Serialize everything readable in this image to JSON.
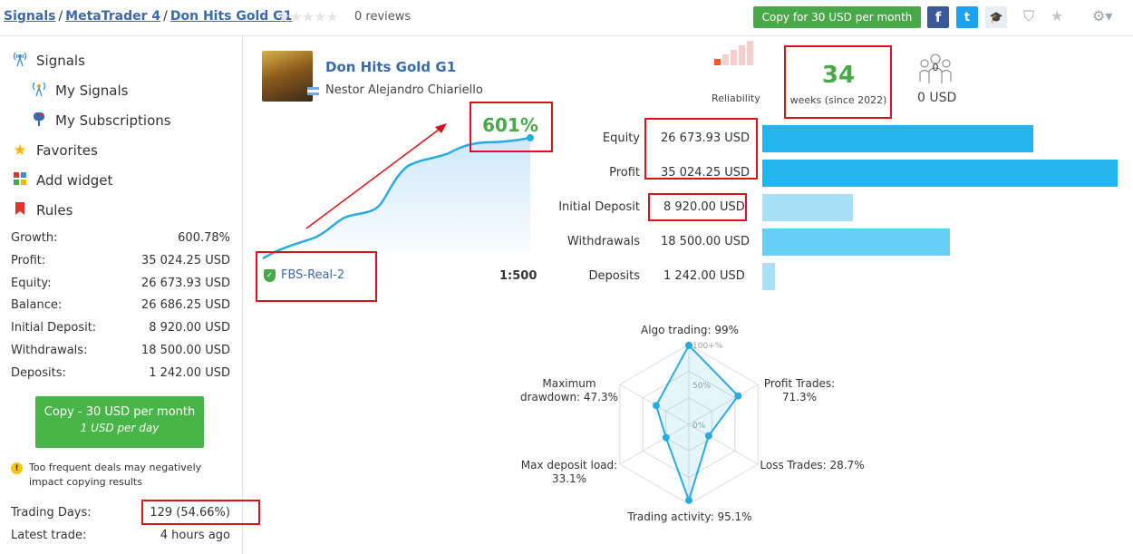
{
  "breadcrumb": {
    "item1": "Signals",
    "item2": "MetaTrader 4",
    "item3": "Don Hits Gold G1",
    "sep": "/"
  },
  "rating": {
    "stars": "★★★★★",
    "reviews": "0 reviews"
  },
  "header": {
    "copy_button": "Copy for 30 USD per month",
    "facebook": "f",
    "twitter": "t",
    "edu": "🎓",
    "shield_icon": "⛉",
    "star_icon": "★",
    "gear_icon": "⚙▾"
  },
  "sidebar": {
    "signals": "Signals",
    "my_signals": "My Signals",
    "my_subscriptions": "My Subscriptions",
    "favorites": "Favorites",
    "add_widget": "Add widget",
    "rules": "Rules"
  },
  "stats": [
    {
      "label": "Growth:",
      "value": "600.78%"
    },
    {
      "label": "Profit:",
      "value": "35 024.25 USD"
    },
    {
      "label": "Equity:",
      "value": "26 673.93 USD"
    },
    {
      "label": "Balance:",
      "value": "26 686.25 USD"
    },
    {
      "label": "Initial Deposit:",
      "value": "8 920.00 USD"
    },
    {
      "label": "Withdrawals:",
      "value": "18 500.00 USD"
    },
    {
      "label": "Deposits:",
      "value": "1 242.00 USD"
    }
  ],
  "copy_box": {
    "line1": "Copy - 30 USD per month",
    "line2": "1 USD per day"
  },
  "warning": {
    "icon": "!",
    "text": "Too frequent deals may negatively impact copying results"
  },
  "trading": [
    {
      "label": "Trading Days:",
      "value": "129 (54.66%)"
    },
    {
      "label": "Latest trade:",
      "value": "4 hours ago"
    }
  ],
  "signal": {
    "name": "Don Hits Gold G1",
    "author": "Nestor Alejandro Chiariello",
    "reliability": "Reliability",
    "weeks": "34",
    "weeks_label": "weeks (since 2022)",
    "subscribers": "0",
    "subscribers_usd": "0 USD",
    "growth": "601%",
    "broker": "FBS-Real-2",
    "broker_icon": "✓",
    "leverage": "1:500"
  },
  "financials": [
    {
      "label": "Equity",
      "value": "26 673.93 USD",
      "amount": 26673.93,
      "color": "#24b5ef"
    },
    {
      "label": "Profit",
      "value": "35 024.25 USD",
      "amount": 35024.25,
      "color": "#24b5ef"
    },
    {
      "label": "Initial Deposit",
      "value": "8 920.00 USD",
      "amount": 8920,
      "color": "#a8e0f8"
    },
    {
      "label": "Withdrawals",
      "value": "18 500.00 USD",
      "amount": 18500,
      "color": "#66cff4"
    },
    {
      "label": "Deposits",
      "value": "1 242.00 USD",
      "amount": 1242,
      "color": "#a8e0f8"
    }
  ],
  "radar": {
    "ticks": [
      "100+%",
      "50%",
      "0%"
    ],
    "axes": [
      {
        "label": "Algo trading: 99%",
        "value": 99
      },
      {
        "label": "Profit Trades: 71.3%",
        "value": 71.3
      },
      {
        "label": "Loss Trades: 28.7%",
        "value": 28.7
      },
      {
        "label": "Trading activity: 95.1%",
        "value": 95.1
      },
      {
        "label": "Max deposit load: 33.1%",
        "value": 33.1
      },
      {
        "label": "Maximum drawdown: 47.3%",
        "value": 47.3
      }
    ]
  },
  "colors": {
    "accent_green": "#47a948",
    "link_blue": "#3a6aa8",
    "highlight_red": "#d9131a"
  }
}
